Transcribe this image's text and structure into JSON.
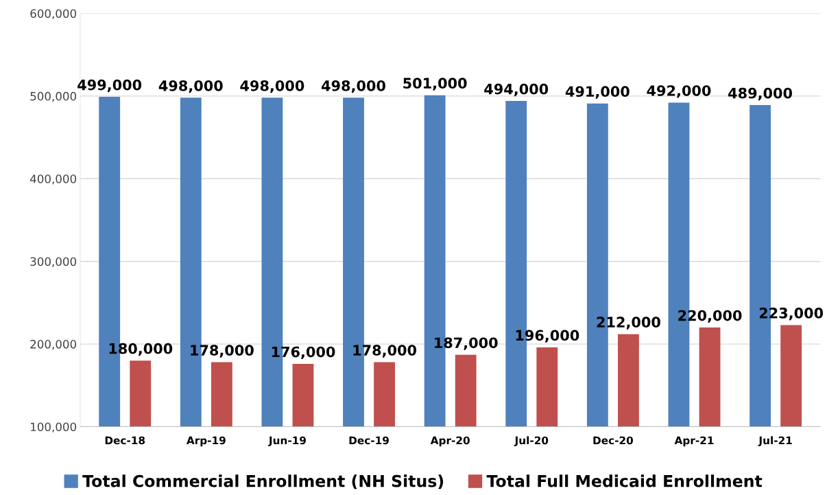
{
  "chart_data": {
    "type": "bar",
    "categories": [
      "Dec-18",
      "Arp-19",
      "Jun-19",
      "Dec-19",
      "Apr-20",
      "Jul-20",
      "Dec-20",
      "Apr-21",
      "Jul-21"
    ],
    "series": [
      {
        "name": "Total Commercial Enrollment (NH Situs)",
        "color": "#4f81bd",
        "values": [
          499000,
          498000,
          498000,
          498000,
          501000,
          494000,
          491000,
          492000,
          489000
        ],
        "value_labels": [
          "499,000",
          "498,000",
          "498,000",
          "498,000",
          "501,000",
          "494,000",
          "491,000",
          "492,000",
          "489,000"
        ]
      },
      {
        "name": "Total Full Medicaid Enrollment",
        "color": "#c0504d",
        "values": [
          180000,
          178000,
          176000,
          178000,
          187000,
          196000,
          212000,
          220000,
          223000
        ],
        "value_labels": [
          "180,000",
          "178,000",
          "176,000",
          "178,000",
          "187,000",
          "196,000",
          "212,000",
          "220,000",
          "223,000"
        ]
      }
    ],
    "ylim": [
      100000,
      600000
    ],
    "yticks": [
      {
        "value": 100000,
        "label": "100,000"
      },
      {
        "value": 200000,
        "label": "200,000"
      },
      {
        "value": 300000,
        "label": "300,000"
      },
      {
        "value": 400000,
        "label": "400,000"
      },
      {
        "value": 500000,
        "label": "500,000"
      },
      {
        "value": 600000,
        "label": "600,000"
      }
    ],
    "grid": "y",
    "legend": "bottom"
  }
}
